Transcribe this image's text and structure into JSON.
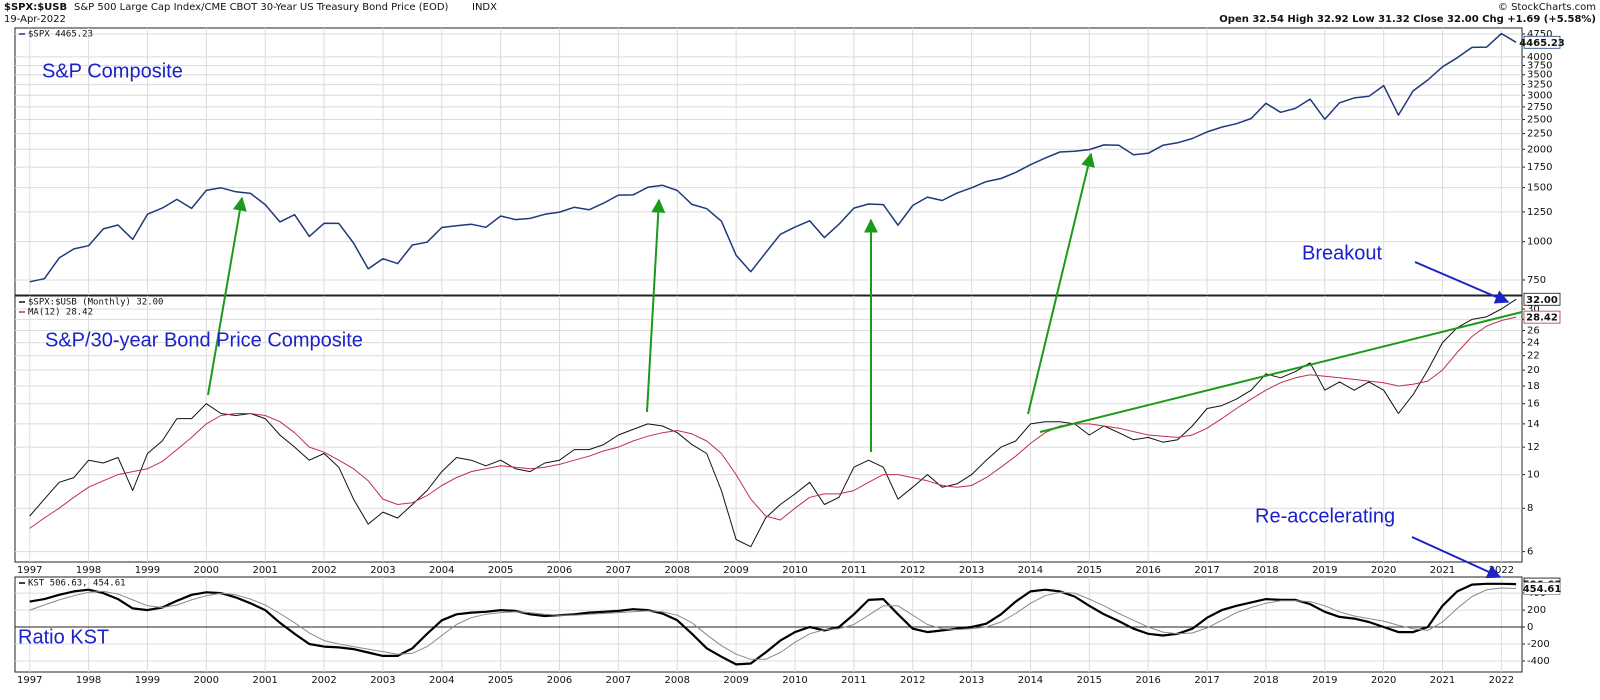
{
  "header": {
    "symbol": "$SPX:$USB",
    "description": "S&P 500 Large Cap Index/CME CBOT 30-Year US Treasury Bond Price (EOD)",
    "exchange": "INDX",
    "date": "19-Apr-2022",
    "quote": "Open 32.54 High 32.92 Low 31.32 Close 32.00 Chg +1.69 (+5.58%)",
    "copyright": "© StockCharts.com"
  },
  "chart_data": [
    {
      "type": "line",
      "log": true,
      "annotations": [
        "S&P Composite"
      ],
      "show_xtick_labels": false,
      "tags": true,
      "xlim": [
        1996.75,
        2022.35
      ],
      "xticks": [
        1997,
        1998,
        1999,
        2000,
        2001,
        2002,
        2003,
        2004,
        2005,
        2006,
        2007,
        2008,
        2009,
        2010,
        2011,
        2012,
        2013,
        2014,
        2015,
        2016,
        2017,
        2018,
        2019,
        2020,
        2021,
        2022
      ],
      "ylim": [
        670,
        4970
      ],
      "yticks": [
        750,
        1000,
        1250,
        1500,
        1750,
        2000,
        2250,
        2500,
        2750,
        3000,
        3250,
        3500,
        3750,
        4000,
        4750
      ],
      "x": [
        1997,
        1997.25,
        1997.5,
        1997.75,
        1998,
        1998.25,
        1998.5,
        1998.75,
        1999,
        1999.25,
        1999.5,
        1999.75,
        2000,
        2000.25,
        2000.5,
        2000.75,
        2001,
        2001.25,
        2001.5,
        2001.75,
        2002,
        2002.25,
        2002.5,
        2002.75,
        2003,
        2003.25,
        2003.5,
        2003.75,
        2004,
        2004.25,
        2004.5,
        2004.75,
        2005,
        2005.25,
        2005.5,
        2005.75,
        2006,
        2006.25,
        2006.5,
        2006.75,
        2007,
        2007.25,
        2007.5,
        2007.75,
        2008,
        2008.25,
        2008.5,
        2008.75,
        2009,
        2009.25,
        2009.5,
        2009.75,
        2010,
        2010.25,
        2010.5,
        2010.75,
        2011,
        2011.25,
        2011.5,
        2011.75,
        2012,
        2012.25,
        2012.5,
        2012.75,
        2013,
        2013.25,
        2013.5,
        2013.75,
        2014,
        2014.25,
        2014.5,
        2014.75,
        2015,
        2015.25,
        2015.5,
        2015.75,
        2016,
        2016.25,
        2016.5,
        2016.75,
        2017,
        2017.25,
        2017.5,
        2017.75,
        2018,
        2018.25,
        2018.5,
        2018.75,
        2019,
        2019.25,
        2019.5,
        2019.75,
        2020,
        2020.25,
        2020.5,
        2020.75,
        2021,
        2021.25,
        2021.5,
        2021.75,
        2022,
        2022.25
      ],
      "series": [
        {
          "name": "$SPX 4465.23",
          "color": "#1f3a7a",
          "width": 1.5,
          "values": [
            740,
            757,
            885,
            947,
            970,
            1100,
            1133,
            1017,
            1229,
            1286,
            1373,
            1283,
            1469,
            1498,
            1454,
            1436,
            1320,
            1160,
            1224,
            1040,
            1148,
            1147,
            990,
            815,
            880,
            848,
            975,
            996,
            1112,
            1126,
            1140,
            1114,
            1212,
            1180,
            1191,
            1228,
            1248,
            1294,
            1270,
            1335,
            1418,
            1420,
            1503,
            1526,
            1468,
            1322,
            1280,
            1166,
            903,
            798,
            919,
            1057,
            1115,
            1169,
            1031,
            1141,
            1286,
            1326,
            1320,
            1131,
            1312,
            1397,
            1362,
            1440,
            1498,
            1569,
            1606,
            1681,
            1782,
            1872,
            1960,
            1972,
            1995,
            2067,
            2063,
            1920,
            1940,
            2060,
            2099,
            2168,
            2279,
            2362,
            2423,
            2519,
            2824,
            2640,
            2718,
            2914,
            2507,
            2834,
            2942,
            2977,
            3226,
            2585,
            3100,
            3363,
            3714,
            3973,
            4297,
            4307,
            4766,
            4465.23
          ]
        }
      ]
    },
    {
      "type": "line",
      "log": true,
      "annotations": [
        "S&P/30-year Bond Price Composite",
        "Breakout",
        "Re-accelerating"
      ],
      "show_xtick_labels": true,
      "tags": true,
      "xlim": [
        1996.75,
        2022.35
      ],
      "xticks": [
        1997,
        1998,
        1999,
        2000,
        2001,
        2002,
        2003,
        2004,
        2005,
        2006,
        2007,
        2008,
        2009,
        2010,
        2011,
        2012,
        2013,
        2014,
        2015,
        2016,
        2017,
        2018,
        2019,
        2020,
        2021,
        2022
      ],
      "ylim": [
        5.6,
        32.7
      ],
      "yticks": [
        6,
        8,
        10,
        12,
        14,
        16,
        18,
        20,
        22,
        24,
        26,
        28,
        30
      ],
      "x": [
        1997,
        1997.25,
        1997.5,
        1997.75,
        1998,
        1998.25,
        1998.5,
        1998.75,
        1999,
        1999.25,
        1999.5,
        1999.75,
        2000,
        2000.25,
        2000.5,
        2000.75,
        2001,
        2001.25,
        2001.5,
        2001.75,
        2002,
        2002.25,
        2002.5,
        2002.75,
        2003,
        2003.25,
        2003.5,
        2003.75,
        2004,
        2004.25,
        2004.5,
        2004.75,
        2005,
        2005.25,
        2005.5,
        2005.75,
        2006,
        2006.25,
        2006.5,
        2006.75,
        2007,
        2007.25,
        2007.5,
        2007.75,
        2008,
        2008.25,
        2008.5,
        2008.75,
        2009,
        2009.25,
        2009.5,
        2009.75,
        2010,
        2010.25,
        2010.5,
        2010.75,
        2011,
        2011.25,
        2011.5,
        2011.75,
        2012,
        2012.25,
        2012.5,
        2012.75,
        2013,
        2013.25,
        2013.5,
        2013.75,
        2014,
        2014.25,
        2014.5,
        2014.75,
        2015,
        2015.25,
        2015.5,
        2015.75,
        2016,
        2016.25,
        2016.5,
        2016.75,
        2017,
        2017.25,
        2017.5,
        2017.75,
        2018,
        2018.25,
        2018.5,
        2018.75,
        2019,
        2019.25,
        2019.5,
        2019.75,
        2020,
        2020.25,
        2020.5,
        2020.75,
        2021,
        2021.25,
        2021.5,
        2021.75,
        2022,
        2022.25
      ],
      "series": [
        {
          "name": "$SPX:$USB (Monthly) 32.00",
          "color": "#111111",
          "width": 1,
          "values": [
            7.6,
            8.5,
            9.5,
            9.8,
            11,
            10.8,
            11.2,
            9.0,
            11.5,
            12.5,
            14.5,
            14.5,
            16,
            15,
            14.8,
            15,
            14.5,
            13,
            12,
            11,
            11.5,
            10.5,
            8.5,
            7.2,
            7.8,
            7.5,
            8.2,
            9,
            10.2,
            11.2,
            11,
            10.6,
            11,
            10.4,
            10.2,
            10.8,
            11,
            11.8,
            11.8,
            12.2,
            13,
            13.5,
            14,
            13.8,
            13.2,
            12.2,
            11.5,
            9,
            6.5,
            6.2,
            7.5,
            8.2,
            8.8,
            9.5,
            8.2,
            8.6,
            10.5,
            11,
            10.5,
            8.5,
            9.2,
            10,
            9.2,
            9.4,
            10,
            11,
            12,
            12.5,
            14,
            14.2,
            14.2,
            14,
            13,
            13.8,
            13.2,
            12.6,
            12.8,
            12.4,
            12.6,
            13.8,
            15.5,
            15.8,
            16.5,
            17.5,
            19.5,
            19,
            19.8,
            21,
            17.5,
            18.5,
            17.5,
            18.5,
            17.5,
            15,
            17,
            20,
            24,
            26.5,
            28,
            28.5,
            30,
            32.0
          ],
          "value_labels": [
            null,
            null,
            null,
            null,
            null,
            null,
            null,
            null,
            null,
            null,
            null,
            null,
            null,
            null,
            null,
            null,
            null,
            null,
            null,
            null,
            null,
            null,
            null,
            null,
            null,
            null,
            null,
            null,
            null,
            null,
            null,
            null,
            null,
            null,
            null,
            null,
            null,
            null,
            null,
            null,
            null,
            null,
            null,
            null,
            null,
            null,
            null,
            null,
            null,
            null,
            null,
            null,
            null,
            null,
            null,
            null,
            null,
            null,
            null,
            null,
            null,
            null,
            null,
            null,
            null,
            null,
            null,
            null,
            null,
            null,
            null,
            null,
            null,
            null,
            null,
            null,
            null,
            null,
            null,
            null,
            null,
            null,
            null,
            null,
            null,
            null,
            null,
            null,
            null,
            null,
            null,
            null,
            null,
            null,
            null,
            null,
            null,
            null,
            null,
            null,
            null,
            "32.00"
          ]
        },
        {
          "name": "MA(12) 28.42",
          "color": "#c0304a",
          "width": 1,
          "values": [
            7,
            7.5,
            8,
            8.6,
            9.2,
            9.6,
            10,
            10.2,
            10.4,
            10.9,
            11.8,
            12.8,
            14,
            14.8,
            15,
            15,
            14.8,
            14.2,
            13.2,
            12,
            11.6,
            11,
            10.4,
            9.6,
            8.5,
            8.2,
            8.3,
            8.7,
            9.3,
            9.8,
            10.2,
            10.4,
            10.6,
            10.5,
            10.4,
            10.5,
            10.7,
            11,
            11.3,
            11.7,
            12,
            12.5,
            12.9,
            13.2,
            13.4,
            13.1,
            12.5,
            11.5,
            10,
            8.5,
            7.6,
            7.4,
            8,
            8.6,
            8.8,
            8.8,
            9.0,
            9.5,
            10.0,
            10.0,
            9.8,
            9.6,
            9.3,
            9.2,
            9.3,
            9.8,
            10.5,
            11.3,
            12.3,
            13.2,
            13.8,
            14,
            14,
            13.8,
            13.6,
            13.3,
            13,
            12.9,
            12.8,
            13,
            13.6,
            14.5,
            15.5,
            16.5,
            17.5,
            18.4,
            19,
            19.4,
            19.2,
            19,
            18.8,
            18.6,
            18.4,
            18,
            18.2,
            18.6,
            20,
            22.5,
            25,
            26.8,
            27.8,
            28.42
          ]
        }
      ]
    },
    {
      "type": "line",
      "log": false,
      "annotations": [
        "Ratio KST"
      ],
      "legend_text": "KST 506.63, 454.61",
      "show_xtick_labels": true,
      "tags": true,
      "xlim": [
        1996.75,
        2022.35
      ],
      "xticks": [
        1997,
        1998,
        1999,
        2000,
        2001,
        2002,
        2003,
        2004,
        2005,
        2006,
        2007,
        2008,
        2009,
        2010,
        2011,
        2012,
        2013,
        2014,
        2015,
        2016,
        2017,
        2018,
        2019,
        2020,
        2021,
        2022
      ],
      "ylim": [
        -530,
        590
      ],
      "yticks": [
        -400,
        -200,
        0,
        200,
        400
      ],
      "x": [
        1997,
        1997.25,
        1997.5,
        1997.75,
        1998,
        1998.25,
        1998.5,
        1998.75,
        1999,
        1999.25,
        1999.5,
        1999.75,
        2000,
        2000.25,
        2000.5,
        2000.75,
        2001,
        2001.25,
        2001.5,
        2001.75,
        2002,
        2002.25,
        2002.5,
        2002.75,
        2003,
        2003.25,
        2003.5,
        2003.75,
        2004,
        2004.25,
        2004.5,
        2004.75,
        2005,
        2005.25,
        2005.5,
        2005.75,
        2006,
        2006.25,
        2006.5,
        2006.75,
        2007,
        2007.25,
        2007.5,
        2007.75,
        2008,
        2008.25,
        2008.5,
        2008.75,
        2009,
        2009.25,
        2009.5,
        2009.75,
        2010,
        2010.25,
        2010.5,
        2010.75,
        2011,
        2011.25,
        2011.5,
        2011.75,
        2012,
        2012.25,
        2012.5,
        2012.75,
        2013,
        2013.25,
        2013.5,
        2013.75,
        2014,
        2014.25,
        2014.5,
        2014.75,
        2015,
        2015.25,
        2015.5,
        2015.75,
        2016,
        2016.25,
        2016.5,
        2016.75,
        2017,
        2017.25,
        2017.5,
        2017.75,
        2018,
        2018.25,
        2018.5,
        2018.75,
        2019,
        2019.25,
        2019.5,
        2019.75,
        2020,
        2020.25,
        2020.5,
        2020.75,
        2021,
        2021.25,
        2021.5,
        2021.75,
        2022,
        2022.25
      ],
      "series": [
        {
          "color": "#000000",
          "width": 2.2,
          "values": [
            300,
            330,
            380,
            420,
            440,
            400,
            330,
            220,
            200,
            230,
            310,
            380,
            410,
            400,
            350,
            280,
            200,
            50,
            -80,
            -200,
            -230,
            -240,
            -260,
            -300,
            -340,
            -340,
            -250,
            -80,
            80,
            150,
            170,
            180,
            200,
            190,
            150,
            130,
            140,
            150,
            170,
            180,
            190,
            210,
            200,
            160,
            80,
            -80,
            -250,
            -350,
            -440,
            -430,
            -300,
            -160,
            -60,
            0,
            -40,
            0,
            150,
            320,
            330,
            150,
            -20,
            -60,
            -40,
            -20,
            0,
            40,
            150,
            300,
            420,
            440,
            420,
            360,
            250,
            150,
            70,
            -20,
            -80,
            -100,
            -80,
            -20,
            110,
            200,
            250,
            290,
            330,
            320,
            320,
            270,
            180,
            120,
            100,
            60,
            0,
            -60,
            -60,
            0,
            250,
            420,
            500,
            510,
            510,
            506.63
          ]
        },
        {
          "color": "#8a8a8a",
          "width": 1,
          "values": [
            200,
            260,
            320,
            370,
            410,
            420,
            390,
            320,
            250,
            230,
            260,
            320,
            370,
            400,
            380,
            330,
            260,
            160,
            50,
            -70,
            -160,
            -200,
            -230,
            -260,
            -290,
            -320,
            -310,
            -230,
            -100,
            30,
            110,
            150,
            170,
            180,
            170,
            150,
            140,
            140,
            150,
            160,
            170,
            180,
            190,
            180,
            140,
            50,
            -90,
            -220,
            -320,
            -380,
            -380,
            -300,
            -180,
            -80,
            -30,
            -20,
            30,
            140,
            250,
            250,
            140,
            30,
            -20,
            -30,
            -20,
            0,
            60,
            160,
            280,
            370,
            410,
            400,
            330,
            250,
            160,
            80,
            0,
            -60,
            -80,
            -70,
            -10,
            80,
            170,
            230,
            280,
            310,
            310,
            300,
            250,
            180,
            130,
            100,
            70,
            20,
            -20,
            -40,
            60,
            220,
            360,
            440,
            460,
            454.61
          ]
        }
      ]
    }
  ]
}
